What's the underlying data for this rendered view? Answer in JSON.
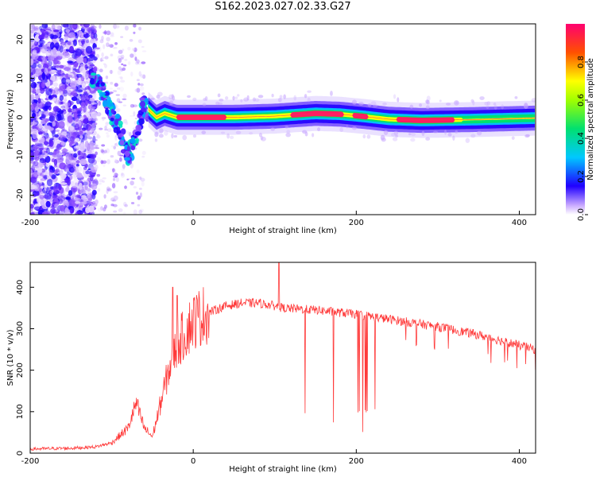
{
  "title": "S162.2023.027.02.33.G27",
  "chart_data": [
    {
      "type": "heatmap",
      "xlabel": "Height of straight line (km)",
      "ylabel": "Frequency (Hz)",
      "xlim": [
        -200,
        420
      ],
      "ylim": [
        -25,
        24
      ],
      "xticks": [
        -200,
        0,
        200,
        400
      ],
      "yticks": [
        20,
        10,
        0,
        -10,
        -20
      ],
      "colorbar": {
        "label": "Normalized spectral amplitude",
        "ticks": [
          0.0,
          0.2,
          0.4,
          0.6,
          0.8
        ],
        "range": [
          0,
          1
        ]
      },
      "ridge": {
        "description_points_x": [
          -120,
          -110,
          -100,
          -90,
          -80,
          -70,
          -62,
          -55,
          -45,
          -35,
          -20,
          0,
          50,
          100,
          150,
          180,
          210,
          240,
          280,
          340,
          420
        ],
        "frequency_y": [
          10,
          6,
          1,
          -3,
          -10,
          -6,
          3,
          2,
          0,
          1,
          0,
          0,
          0,
          0.3,
          1,
          0.8,
          0.2,
          -0.5,
          -0.8,
          -0.6,
          -0.2
        ]
      }
    },
    {
      "type": "line",
      "xlabel": "Height of straight line (km)",
      "ylabel": "SNR (10 * v/v)",
      "xlim": [
        -200,
        420
      ],
      "ylim": [
        0,
        460
      ],
      "xticks": [
        -200,
        0,
        200,
        400
      ],
      "yticks": [
        0,
        100,
        200,
        300,
        400
      ],
      "series": [
        {
          "color": "#ff3a3a",
          "envelope_x": [
            -200,
            -150,
            -120,
            -100,
            -80,
            -70,
            -60,
            -50,
            -40,
            -30,
            -20,
            -10,
            0,
            20,
            40,
            60,
            80,
            100,
            110,
            150,
            200,
            250,
            300,
            350,
            400,
            420
          ],
          "envelope_y": [
            10,
            12,
            15,
            25,
            60,
            120,
            60,
            40,
            120,
            200,
            260,
            290,
            320,
            340,
            355,
            362,
            362,
            355,
            350,
            345,
            335,
            320,
            305,
            285,
            260,
            250
          ],
          "spike_x": [
            -25,
            -20,
            105
          ],
          "spike_y": [
            400,
            380,
            460
          ],
          "dropout_range_x": [
            105,
            230
          ],
          "dropout_min_y": 50
        }
      ]
    }
  ]
}
